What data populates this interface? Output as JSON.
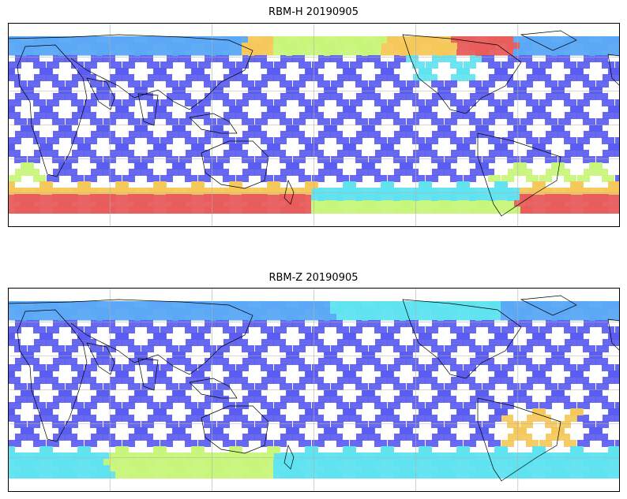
{
  "figure": {
    "panels": [
      {
        "title": "RBM-H 20190905",
        "variant": "h"
      },
      {
        "title": "RBM-Z 20190905",
        "variant": "z"
      }
    ],
    "colors": {
      "low": "#5a5cf0",
      "mid_low": "#5aa8f5",
      "mid": "#5fe3f0",
      "mid_high": "#c8f57a",
      "high": "#f5c85a",
      "top": "#e85c5c",
      "coast": "#000000",
      "grid": "#b0b0b0"
    }
  }
}
